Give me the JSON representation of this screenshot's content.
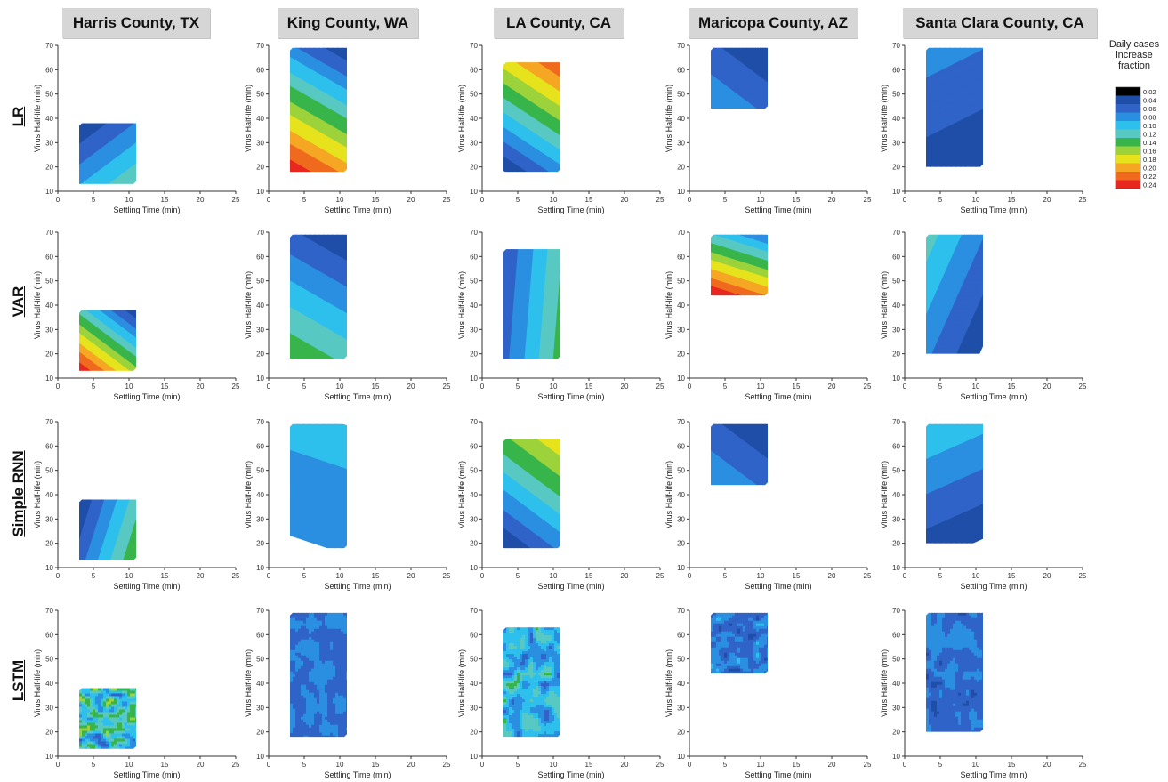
{
  "columns": [
    {
      "label": "Harris County, TX"
    },
    {
      "label": "King County, WA"
    },
    {
      "label": "LA County, CA"
    },
    {
      "label": "Maricopa County, AZ"
    },
    {
      "label": "Santa Clara County, CA"
    }
  ],
  "rows": [
    {
      "label": "LR"
    },
    {
      "label": "VAR"
    },
    {
      "label": "Simple RNN"
    },
    {
      "label": "LSTM"
    }
  ],
  "legend": {
    "title": "Daily cases increase fraction",
    "levels": [
      "0.02",
      "0.04",
      "0.06",
      "0.08",
      "0.10",
      "0.12",
      "0.14",
      "0.16",
      "0.18",
      "0.20",
      "0.22",
      "0.24"
    ],
    "colors": [
      "#000000",
      "#1f4ea8",
      "#2f63c8",
      "#2a8fe0",
      "#2ec0ec",
      "#58c9c2",
      "#38b54a",
      "#9cd23a",
      "#e6e21c",
      "#f5a623",
      "#f06a1e",
      "#e8281e"
    ]
  },
  "chart_data": {
    "type": "heatmap",
    "xlabel": "Settling Time (min)",
    "ylabel": "Virus Half-life (min)",
    "xlim": [
      0,
      25
    ],
    "ylim": [
      10,
      70
    ],
    "xticks": [
      0,
      5,
      10,
      15,
      20,
      25
    ],
    "yticks": [
      10,
      20,
      30,
      40,
      50,
      60,
      70
    ],
    "panels": [
      {
        "row": "LR",
        "column": "Harris County, TX",
        "x_range": [
          3,
          11
        ],
        "y_range": [
          13,
          38
        ],
        "dir": [
          -0.6,
          -0.8
        ],
        "dark_end": 1,
        "span": [
          0.02,
          0.12
        ]
      },
      {
        "row": "LR",
        "column": "King County, WA",
        "x_range": [
          3,
          11
        ],
        "y_range": [
          18,
          69
        ],
        "dir": [
          -0.5,
          0.87
        ],
        "dark_end": 0,
        "span": [
          0.02,
          0.24
        ]
      },
      {
        "row": "LR",
        "column": "LA County, CA",
        "x_range": [
          3,
          11
        ],
        "y_range": [
          18,
          63
        ],
        "dir": [
          0.55,
          -0.83
        ],
        "dark_end": 0,
        "span": [
          0.02,
          0.22
        ]
      },
      {
        "row": "LR",
        "column": "Maricopa County, AZ",
        "x_range": [
          3,
          11
        ],
        "y_range": [
          44,
          69
        ],
        "dir": [
          -0.6,
          0.8
        ],
        "dark_end": 0,
        "span": [
          0.02,
          0.08
        ]
      },
      {
        "row": "LR",
        "column": "Santa Clara County, CA",
        "x_range": [
          3,
          11
        ],
        "y_range": [
          20,
          69
        ],
        "dir": [
          -0.45,
          -0.9
        ],
        "dark_end": 0,
        "span": [
          0.02,
          0.07
        ]
      },
      {
        "row": "VAR",
        "column": "Harris County, TX",
        "x_range": [
          3,
          11
        ],
        "y_range": [
          13,
          38
        ],
        "dir": [
          -0.6,
          0.8
        ],
        "dark_end": 0,
        "span": [
          0.02,
          0.24
        ]
      },
      {
        "row": "VAR",
        "column": "King County, WA",
        "x_range": [
          3,
          11
        ],
        "y_range": [
          18,
          69
        ],
        "dir": [
          -0.5,
          0.87
        ],
        "dark_end": 0,
        "span": [
          0.02,
          0.14
        ]
      },
      {
        "row": "VAR",
        "column": "LA County, CA",
        "x_range": [
          3,
          11
        ],
        "y_range": [
          18,
          63
        ],
        "dir": [
          1.0,
          0.08
        ],
        "dark_end": 0,
        "span": [
          0.04,
          0.13
        ]
      },
      {
        "row": "VAR",
        "column": "Maricopa County, AZ",
        "x_range": [
          3,
          11
        ],
        "y_range": [
          44,
          69
        ],
        "dir": [
          -0.3,
          0.95
        ],
        "dark_end": 0,
        "span": [
          0.06,
          0.24
        ]
      },
      {
        "row": "VAR",
        "column": "Santa Clara County, CA",
        "x_range": [
          3,
          11
        ],
        "y_range": [
          20,
          69
        ],
        "dir": [
          -0.9,
          -0.4
        ],
        "dark_end": 0,
        "span": [
          0.02,
          0.11
        ]
      },
      {
        "row": "Simple RNN",
        "column": "Harris County, TX",
        "x_range": [
          3,
          11
        ],
        "y_range": [
          13,
          38
        ],
        "dir": [
          -0.95,
          -0.3
        ],
        "dark_end": 1,
        "span": [
          0.02,
          0.14
        ]
      },
      {
        "row": "Simple RNN",
        "column": "King County, WA",
        "x_range": [
          3,
          11
        ],
        "y_range": [
          18,
          69
        ],
        "dir": [
          0.3,
          -0.9
        ],
        "dark_end": 0,
        "span": [
          0.06,
          0.09
        ]
      },
      {
        "row": "Simple RNN",
        "column": "LA County, CA",
        "x_range": [
          3,
          11
        ],
        "y_range": [
          18,
          63
        ],
        "dir": [
          0.6,
          -0.8
        ],
        "dark_end": 0,
        "span": [
          0.02,
          0.18
        ]
      },
      {
        "row": "Simple RNN",
        "column": "Maricopa County, AZ",
        "x_range": [
          3,
          11
        ],
        "y_range": [
          44,
          69
        ],
        "dir": [
          -0.6,
          0.8
        ],
        "dark_end": 0,
        "span": [
          0.02,
          0.08
        ]
      },
      {
        "row": "Simple RNN",
        "column": "Santa Clara County, CA",
        "x_range": [
          3,
          11
        ],
        "y_range": [
          20,
          69
        ],
        "dir": [
          -0.4,
          -0.9
        ],
        "dark_end": 0,
        "span": [
          0.02,
          0.1
        ]
      },
      {
        "row": "LSTM",
        "column": "Harris County, TX",
        "x_range": [
          3,
          11
        ],
        "y_range": [
          13,
          38
        ],
        "noise": [
          0.04,
          0.16
        ],
        "seed": 1
      },
      {
        "row": "LSTM",
        "column": "King County, WA",
        "x_range": [
          3,
          11
        ],
        "y_range": [
          18,
          69
        ],
        "noise": [
          0.04,
          0.08
        ],
        "seed": 2
      },
      {
        "row": "LSTM",
        "column": "LA County, CA",
        "x_range": [
          3,
          11
        ],
        "y_range": [
          18,
          63
        ],
        "noise": [
          0.04,
          0.13
        ],
        "seed": 3
      },
      {
        "row": "LSTM",
        "column": "Maricopa County, AZ",
        "x_range": [
          3,
          11
        ],
        "y_range": [
          44,
          69
        ],
        "noise": [
          0.03,
          0.09
        ],
        "seed": 4
      },
      {
        "row": "LSTM",
        "column": "Santa Clara County, CA",
        "x_range": [
          3,
          11
        ],
        "y_range": [
          20,
          69
        ],
        "noise": [
          0.03,
          0.08
        ],
        "seed": 5
      }
    ]
  }
}
